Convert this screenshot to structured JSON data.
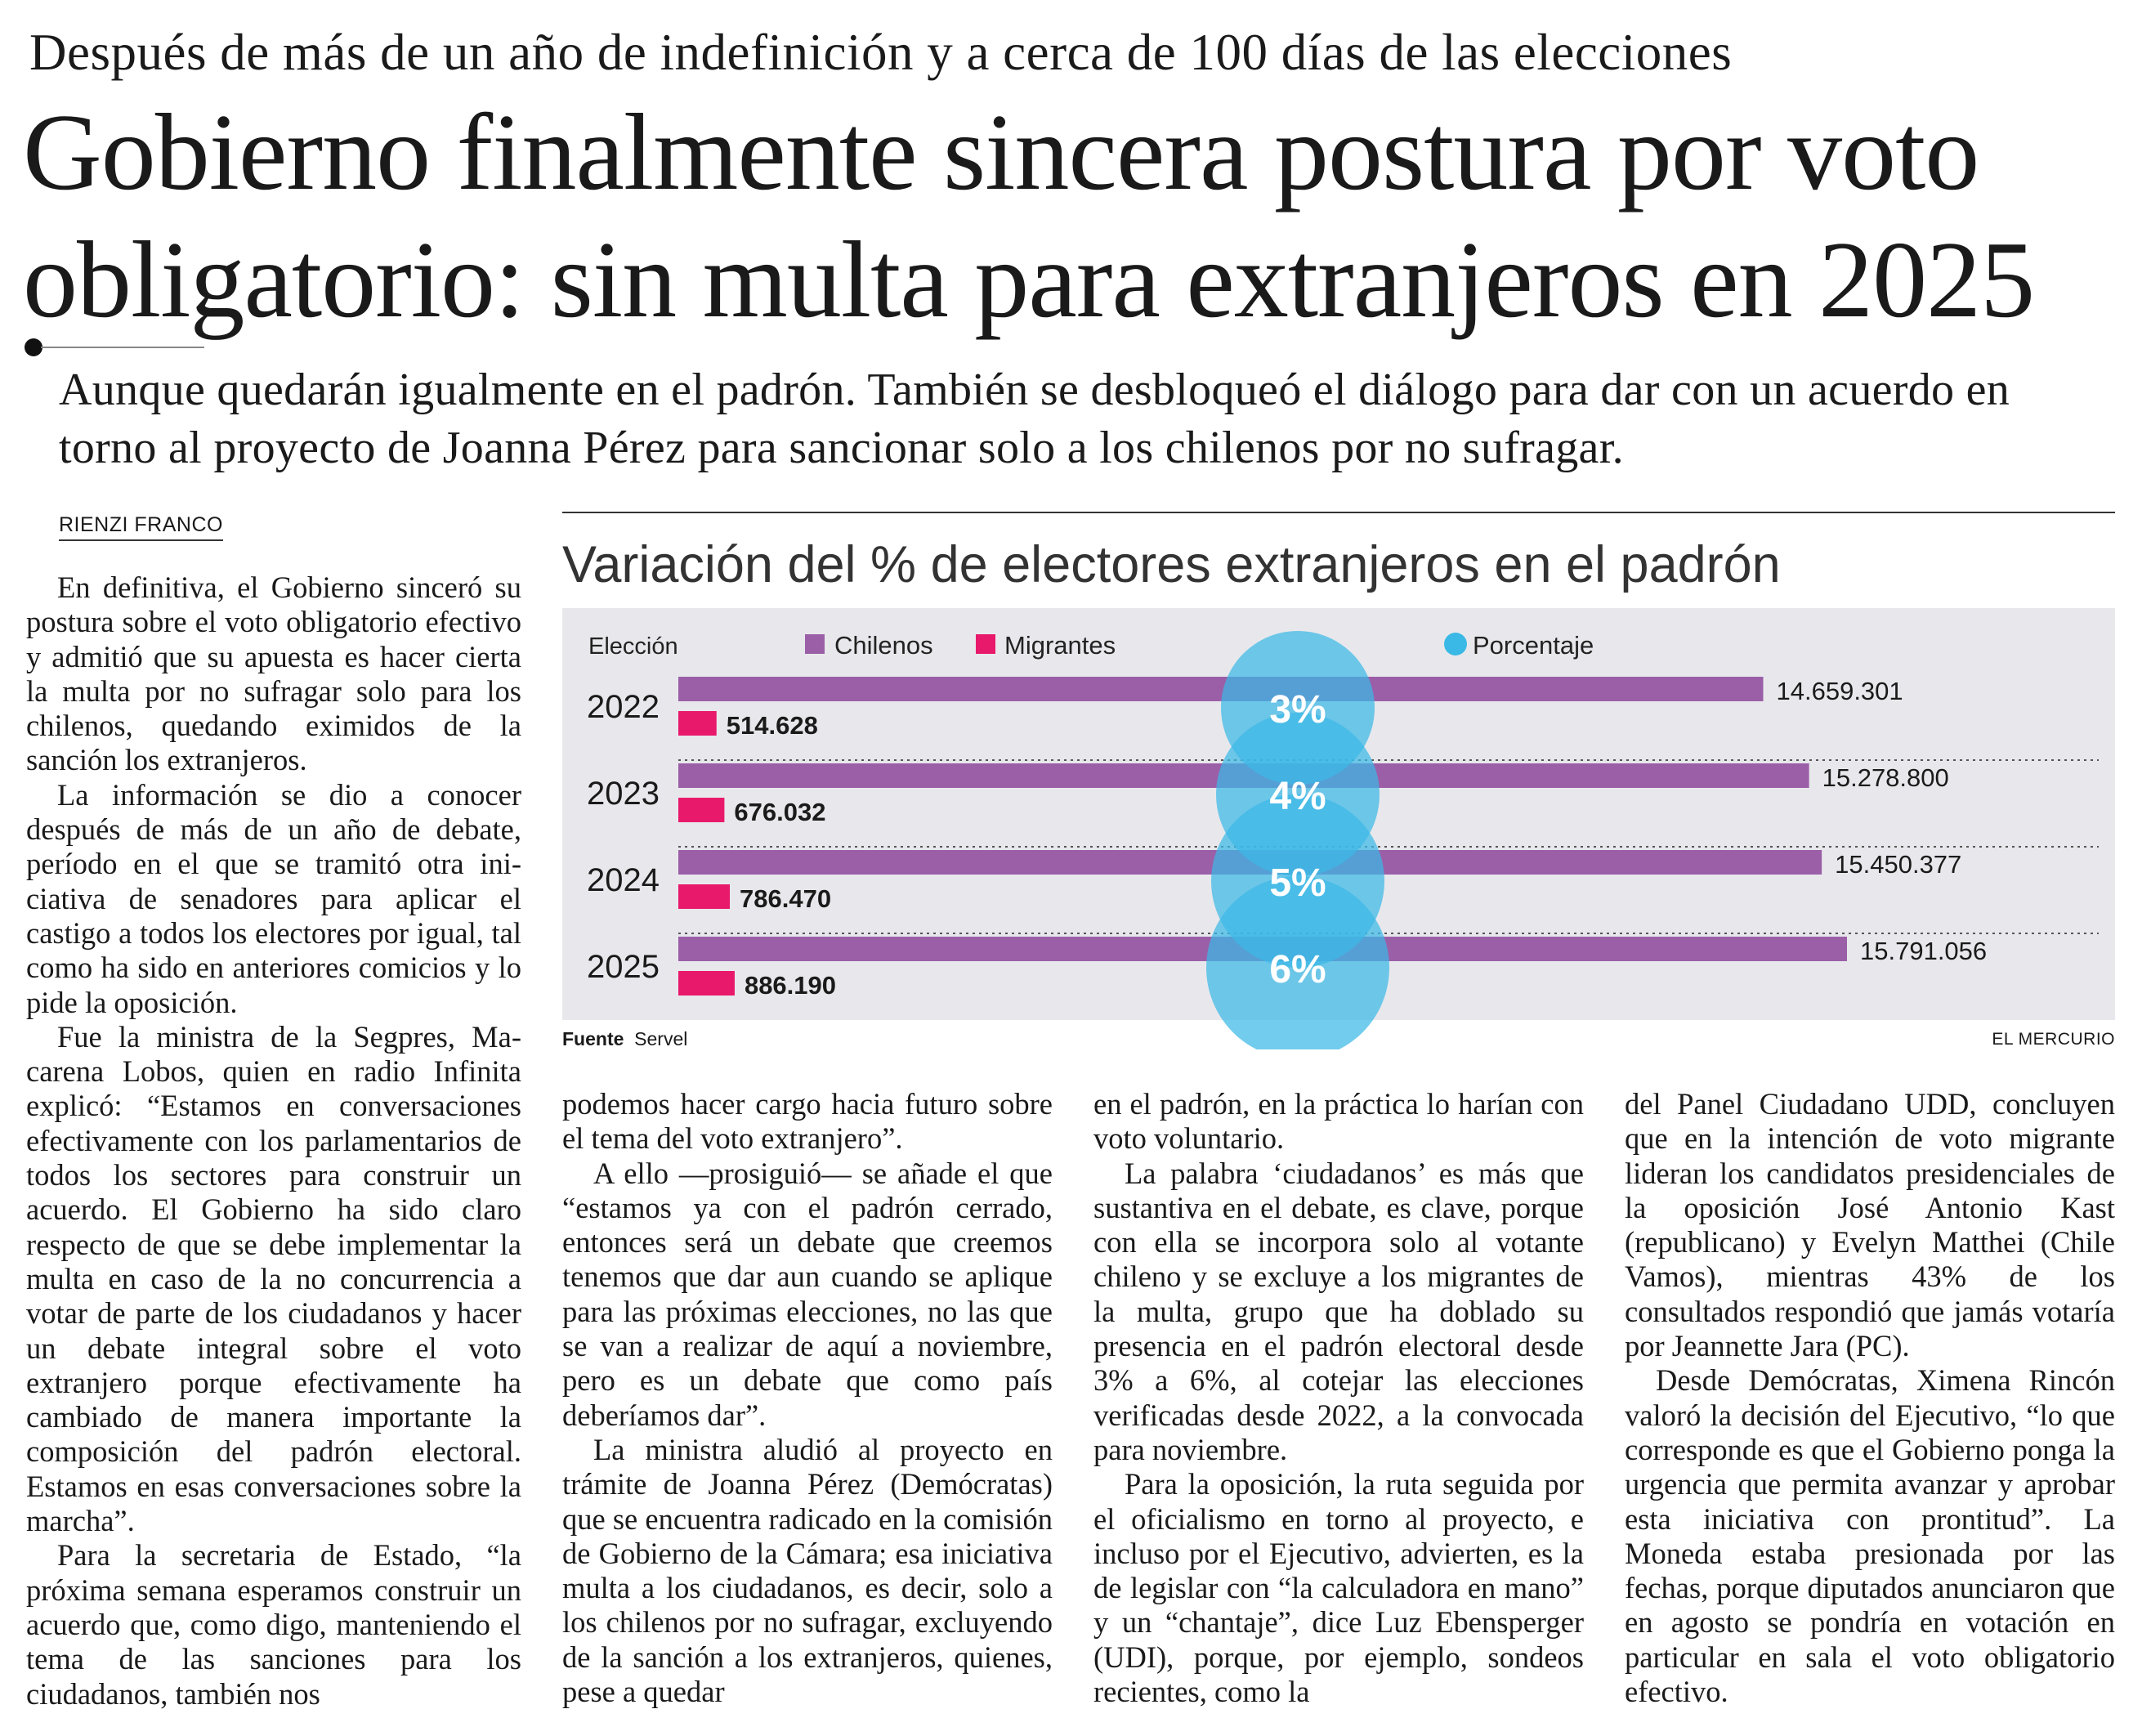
{
  "article": {
    "kicker": "Después de más de un año de indefinición y a cerca de 100 días de las elecciones",
    "headline": "Gobierno finalmente sincera postura por voto obligatorio: sin multa para extranjeros en 2025",
    "deck": "Aunque quedarán igualmente en el padrón. También se desbloqueó el diálogo para dar con un acuerdo en torno al proyecto de Joanna Pérez para sancionar solo a los chilenos por no sufragar.",
    "byline": "RIENZI FRANCO",
    "col1": [
      "En definitiva, el Gobierno sinceró su postura sobre el voto obligatorio efectivo y admitió que su apuesta es hacer cierta la multa por no sufragar solo para los chilenos, quedando exi­midos de la sanción los extranjeros.",
      "La información se dio a conocer después de más de un año de debate, período en el que se tramitó otra ini­ciativa de senadores para aplicar el castigo a todos los electores por igual, tal como ha sido en anteriores comicios y lo pide la oposición.",
      "Fue la ministra de la Segpres, Ma­carena Lobos, quien en radio Infinita explicó: “Estamos en conversaciones efectivamente con los parlamenta­rios de todos los sectores para cons­truir un acuerdo. El Gobierno ha sido claro respecto de que se debe imple­mentar la multa en caso de la no con­currencia a votar de parte de los ciu­dadanos y hacer un debate integral sobre el voto extranjero porque efec­tivamente ha cambiado de manera importante la composición del pa­drón electoral. Estamos en esas con­versaciones sobre la marcha”.",
      "Para la secretaria de Estado, “la próxima semana esperamos cons­truir un acuerdo que, como digo, manteniendo el tema de las sancio­nes para los ciudadanos, también nos"
    ],
    "col2": [
      "podemos hacer cargo hacia futuro sobre el tema del voto extranjero”.",
      "A ello —prosiguió— se añade el que “estamos ya con el padrón cerra­do, entonces será un debate que cree­mos tenemos que dar aun cuando se aplique para las próximas elecciones, no las que se van a realizar de aquí a noviembre, pero es un debate que co­mo país deberíamos dar”.",
      "La ministra aludió al proyecto en trámite de Joanna Pérez (Demócra­tas) que se encuentra radicado en la comisión de Gobierno de la Cámara; esa iniciativa multa a los ciudadanos, es decir, solo a los chilenos por no su­fragar, excluyendo de la sanción a los extranjeros, quienes, pese a quedar"
    ],
    "col3": [
      "en el padrón, en la práctica lo harían con voto voluntario.",
      "La palabra ‘ciudadanos’ es más que sustantiva en el debate, es clave, porque con ella se incorpora solo al votante chileno y se excluye a los mi­grantes de la multa, grupo que ha do­blado su presencia en el padrón elec­toral desde 3% a 6%, al cotejar las elecciones verificadas desde 2022, a la convocada para noviembre.",
      "Para la oposición, la ruta seguida por el oficialismo en torno al proyec­to, e incluso por el Ejecutivo, advier­ten, es la de legislar con “la calcula­dora en mano” y un “chantaje”, dice Luz Ebensperger (UDI), porque, por ejemplo, sondeos recientes, como la"
    ],
    "col4": [
      "del Panel Ciudadano UDD, conclu­yen que en la intención de voto mi­grante lideran los candidatos presi­denciales de la oposición José Anto­nio Kast (republicano) y Evelyn Mat­thei (Chile Vamos), mientras 43% de los consultados respondió que jamás votaría por Jeannette Jara (PC).",
      "Desde Demócratas, Ximena Rin­cón valoró la decisión del Ejecutivo, “lo que corresponde es que el Go­bierno ponga la urgencia que permi­ta avanzar y aprobar esta iniciativa con prontitud”. La Moneda estaba presionada por las fechas, porque di­putados anunciaron que en agosto se pondría en votación en particular en sala el voto obligatorio efectivo."
    ]
  },
  "chart_data": {
    "type": "bar",
    "title": "Variación del % de electores extranjeros en el padrón",
    "category_label": "Elección",
    "categories": [
      "2022",
      "2023",
      "2024",
      "2025"
    ],
    "series": [
      {
        "name": "Chilenos",
        "values": [
          14659301,
          15278800,
          15450377,
          15791056
        ],
        "labels": [
          "14.659.301",
          "15.278.800",
          "15.450.377",
          "15.791.056"
        ],
        "color": "#9b5fa8"
      },
      {
        "name": "Migrantes",
        "values": [
          514628,
          676032,
          786470,
          886190
        ],
        "labels": [
          "514.628",
          "676.032",
          "786.470",
          "886.190"
        ],
        "color": "#e8196b"
      },
      {
        "name": "Porcentaje",
        "values": [
          3,
          4,
          5,
          6
        ],
        "labels": [
          "3%",
          "4%",
          "5%",
          "6%"
        ],
        "color": "#3bb9e6"
      }
    ],
    "legend_position": "top",
    "orientation": "horizontal",
    "source_label": "Fuente",
    "source": "Servel",
    "credit": "EL MERCURIO"
  }
}
